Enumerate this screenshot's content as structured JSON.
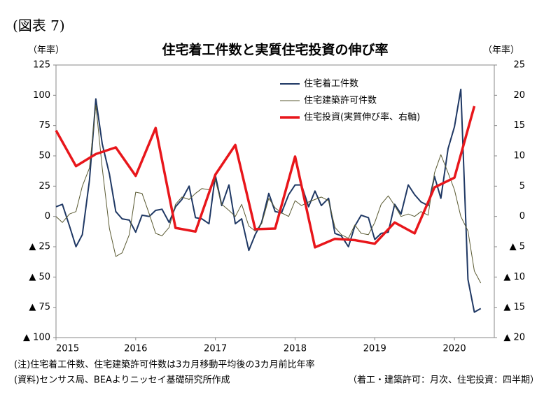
{
  "chart_data": {
    "type": "line",
    "figure_label": "(図表 7)",
    "title": "住宅着工件数と実質住宅投資の伸び率",
    "y_label": "（年率）",
    "y2_label": "（年率）",
    "note": "(注)住宅着工件数、住宅建築許可件数は3カ月移動平均後の3カ月前比年率",
    "source": "(資料)センサス局、BEAよりニッセイ基礎研究所作成",
    "frequency_note": "（着工・建築許可：月次、住宅投資：四半期）",
    "x": [
      2015,
      2015.08,
      2015.17,
      2015.25,
      2015.33,
      2015.42,
      2015.5,
      2015.58,
      2015.67,
      2015.75,
      2015.83,
      2015.92,
      2016,
      2016.08,
      2016.17,
      2016.25,
      2016.33,
      2016.42,
      2016.5,
      2016.58,
      2016.67,
      2016.75,
      2016.83,
      2016.92,
      2017,
      2017.08,
      2017.17,
      2017.25,
      2017.33,
      2017.42,
      2017.5,
      2017.58,
      2017.67,
      2017.75,
      2017.83,
      2017.92,
      2018,
      2018.08,
      2018.17,
      2018.25,
      2018.33,
      2018.42,
      2018.5,
      2018.58,
      2018.67,
      2018.75,
      2018.83,
      2018.92,
      2019,
      2019.08,
      2019.17,
      2019.25,
      2019.33,
      2019.42,
      2019.5,
      2019.58,
      2019.67,
      2019.75,
      2019.83,
      2019.92,
      2020,
      2020.08,
      2020.17,
      2020.25,
      2020.33
    ],
    "series": [
      {
        "name": "住宅着工件数",
        "color": "#1f3864",
        "width": 2,
        "values": [
          8,
          10,
          -8,
          -25,
          -15,
          30,
          97,
          60,
          35,
          4,
          -2,
          -3,
          -13,
          1,
          0,
          5,
          6,
          -5,
          8,
          14,
          25,
          -1,
          -2,
          -6,
          34,
          9,
          26,
          -6,
          -2,
          -28,
          -15,
          -5,
          19,
          4,
          3,
          18,
          26,
          26,
          8,
          21,
          9,
          15,
          -14,
          -16,
          -25,
          -8,
          1,
          -1,
          -19,
          -14,
          -13,
          10,
          2,
          26,
          18,
          12,
          9,
          33,
          15,
          56,
          74,
          105,
          -52,
          -79,
          -76
        ]
      },
      {
        "name": "住宅建築許可件数",
        "color": "#5a5a32",
        "width": 1,
        "values": [
          0,
          -5,
          2,
          4,
          25,
          40,
          92,
          40,
          -10,
          -33,
          -30,
          -15,
          20,
          19,
          2,
          -14,
          -16,
          -9,
          10,
          16,
          14,
          19,
          23,
          22,
          30,
          10,
          5,
          0,
          10,
          -8,
          -12,
          -6,
          15,
          7,
          3,
          0,
          13,
          9,
          12,
          14,
          16,
          13,
          -9,
          -15,
          -18,
          -7,
          -14,
          -15,
          -5,
          10,
          17,
          9,
          0,
          2,
          0,
          4,
          1,
          36,
          51,
          36,
          22,
          0,
          -12,
          -45,
          -55
        ]
      },
      {
        "name": "住宅投資(実質伸び率、右軸)",
        "color": "#e8161b",
        "width": 3.5,
        "axis": "y2",
        "x": [
          2015,
          2015.25,
          2015.5,
          2015.75,
          2016,
          2016.25,
          2016.5,
          2016.75,
          2017,
          2017.25,
          2017.5,
          2017.75,
          2018,
          2018.25,
          2018.5,
          2018.75,
          2019,
          2019.25,
          2019.5,
          2019.75,
          2020,
          2020.25
        ],
        "values": [
          14.2,
          8.3,
          10.3,
          11.4,
          6.7,
          14.6,
          -1.9,
          -2.5,
          6.9,
          11.8,
          -2.1,
          -2,
          9.9,
          -5.1,
          -3.7,
          -3.9,
          -4.5,
          -1,
          -2.8,
          4.8,
          6.4,
          18.2
        ]
      }
    ],
    "xlim": [
      2015,
      2020.5
    ],
    "xticks": [
      2015,
      2016,
      2017,
      2018,
      2019,
      2020
    ],
    "ylim": [
      -100,
      125
    ],
    "yticks": [
      {
        "value": -100,
        "label": "▲ 100"
      },
      {
        "value": -75,
        "label": "▲ 75"
      },
      {
        "value": -50,
        "label": "▲ 50"
      },
      {
        "value": -25,
        "label": "▲ 25"
      },
      0,
      25,
      50,
      75,
      100,
      125
    ],
    "y2lim": [
      -20,
      25
    ],
    "y2ticks": [
      {
        "value": -20,
        "label": "▲ 20"
      },
      {
        "value": -15,
        "label": "▲ 15"
      },
      {
        "value": -10,
        "label": "▲ 10"
      },
      {
        "value": -5,
        "label": "▲ 5"
      },
      0,
      5,
      10,
      15,
      20,
      25
    ],
    "grid": false,
    "legend": "upper right"
  }
}
